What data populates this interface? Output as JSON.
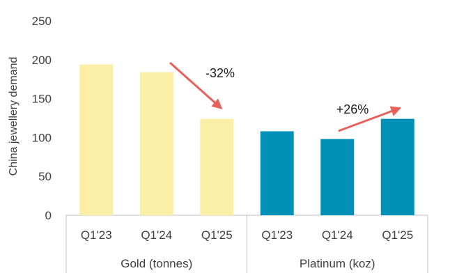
{
  "chart_data": {
    "type": "bar",
    "ylabel": "China jewellery demand",
    "ylim": [
      0,
      250
    ],
    "yticks": [
      0,
      50,
      100,
      150,
      200,
      250
    ],
    "grid": false,
    "groups": [
      {
        "name": "Gold (tonnes)",
        "color": "#FBEEA6",
        "categories": [
          "Q1'23",
          "Q1'24",
          "Q1'25"
        ],
        "values": [
          194,
          184,
          124
        ],
        "change_label": "-32%"
      },
      {
        "name": "Platinum (koz)",
        "color": "#0090B8",
        "categories": [
          "Q1'23",
          "Q1'24",
          "Q1'25"
        ],
        "values": [
          108,
          98,
          124
        ],
        "change_label": "+26%"
      }
    ],
    "arrow_color": "#E8605A"
  }
}
